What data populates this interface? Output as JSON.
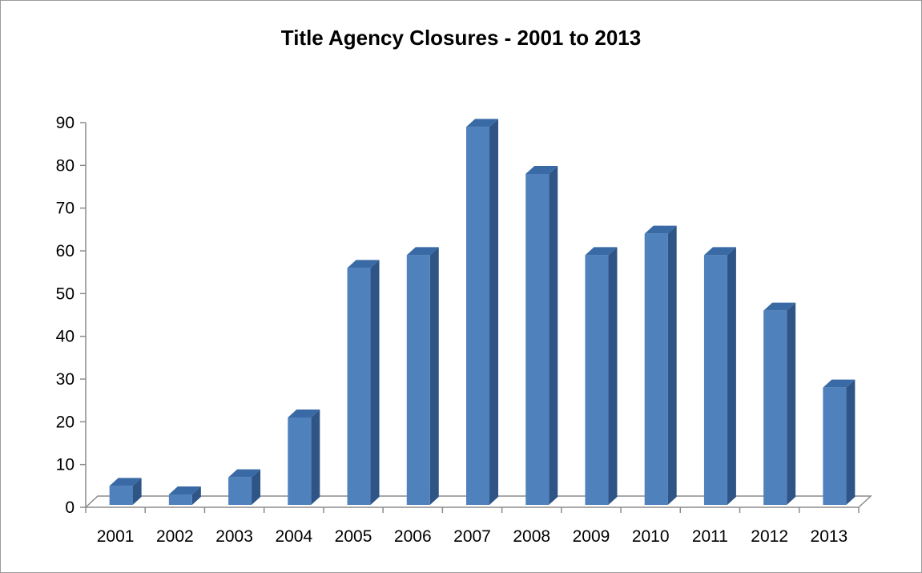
{
  "chart_data": {
    "type": "bar",
    "title": "Title Agency Closures - 2001 to 2013",
    "xlabel": "",
    "ylabel": "",
    "categories": [
      "2001",
      "2002",
      "2003",
      "2004",
      "2005",
      "2006",
      "2007",
      "2008",
      "2009",
      "2010",
      "2011",
      "2012",
      "2013"
    ],
    "values": [
      5,
      3,
      7,
      21,
      56,
      59,
      89,
      78,
      59,
      64,
      59,
      46,
      28
    ],
    "ylim": [
      0,
      90
    ],
    "yticks": [
      "0",
      "10",
      "20",
      "30",
      "40",
      "50",
      "60",
      "70",
      "80",
      "90"
    ],
    "grid": false,
    "legend": "none",
    "bar_style": "3d-column",
    "colors": {
      "bar_front": "#4f81bd",
      "bar_side": "#2f5587",
      "bar_top": "#3a6aa5",
      "axis": "#8c8c8c"
    }
  }
}
